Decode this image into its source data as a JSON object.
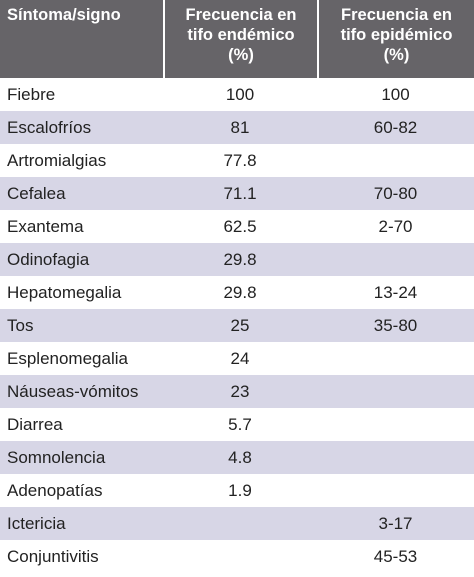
{
  "table": {
    "headers": {
      "symptom": "Síntoma/signo",
      "endemic": [
        "Frecuencia en",
        "tifo endémico",
        "(%)"
      ],
      "epidemic": [
        "Frecuencia en",
        "tifo epidémico",
        "(%)"
      ]
    },
    "rows": [
      {
        "symptom": "Fiebre",
        "endemic": "100",
        "epidemic": "100"
      },
      {
        "symptom": "Escalofríos",
        "endemic": "81",
        "epidemic": "60-82"
      },
      {
        "symptom": "Artromialgias",
        "endemic": "77.8",
        "epidemic": ""
      },
      {
        "symptom": "Cefalea",
        "endemic": "71.1",
        "epidemic": "70-80"
      },
      {
        "symptom": "Exantema",
        "endemic": "62.5",
        "epidemic": "2-70"
      },
      {
        "symptom": "Odinofagia",
        "endemic": "29.8",
        "epidemic": ""
      },
      {
        "symptom": "Hepatomegalia",
        "endemic": "29.8",
        "epidemic": "13-24"
      },
      {
        "symptom": "Tos",
        "endemic": "25",
        "epidemic": "35-80"
      },
      {
        "symptom": "Esplenomegalia",
        "endemic": "24",
        "epidemic": ""
      },
      {
        "symptom": "Náuseas-vómitos",
        "endemic": "23",
        "epidemic": ""
      },
      {
        "symptom": "Diarrea",
        "endemic": "5.7",
        "epidemic": ""
      },
      {
        "symptom": "Somnolencia",
        "endemic": "4.8",
        "epidemic": ""
      },
      {
        "symptom": "Adenopatías",
        "endemic": "1.9",
        "epidemic": ""
      },
      {
        "symptom": "Ictericia",
        "endemic": "",
        "epidemic": "3-17"
      },
      {
        "symptom": "Conjuntivitis",
        "endemic": "",
        "epidemic": "45-53"
      }
    ],
    "colors": {
      "header_bg": "#666468",
      "header_text": "#ffffff",
      "row_shade": "#d7d6e6",
      "row_plain": "#ffffff",
      "text": "#222222"
    }
  }
}
